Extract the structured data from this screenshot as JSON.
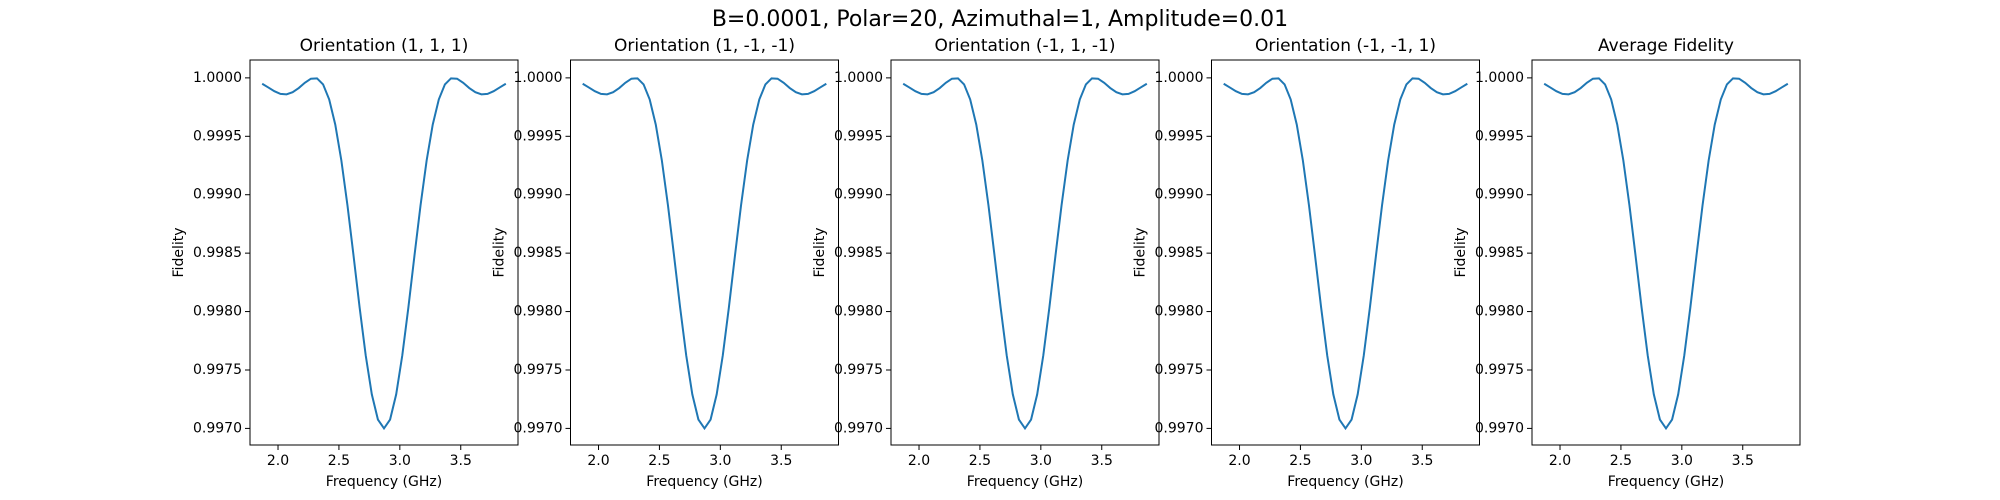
{
  "figure_title": "B=0.0001, Polar=20, Azimuthal=1, Amplitude=0.01",
  "chart_data": [
    {
      "type": "line",
      "title": "Orientation (1, 1, 1)",
      "xlabel": "Frequency (GHz)",
      "ylabel": "Fidelity",
      "color": "#1f77b4",
      "x": [
        1.87,
        1.92,
        1.97,
        2.02,
        2.07,
        2.12,
        2.17,
        2.22,
        2.27,
        2.32,
        2.37,
        2.42,
        2.47,
        2.52,
        2.57,
        2.62,
        2.67,
        2.72,
        2.77,
        2.82,
        2.87,
        2.92,
        2.97,
        3.02,
        3.07,
        3.12,
        3.17,
        3.22,
        3.27,
        3.32,
        3.37,
        3.42,
        3.47,
        3.52,
        3.57,
        3.62,
        3.67,
        3.72,
        3.77,
        3.82,
        3.87
      ],
      "values": [
        0.99995,
        0.999918,
        0.999886,
        0.999863,
        0.999859,
        0.999877,
        0.999913,
        0.999958,
        0.999993,
        0.999996,
        0.999944,
        0.999816,
        0.9996,
        0.999293,
        0.99891,
        0.998478,
        0.998034,
        0.997624,
        0.997291,
        0.997076,
        0.997,
        0.997076,
        0.997291,
        0.997624,
        0.998034,
        0.998478,
        0.99891,
        0.999293,
        0.9996,
        0.999816,
        0.999944,
        0.999996,
        0.999993,
        0.999958,
        0.999913,
        0.999877,
        0.999859,
        0.999863,
        0.999886,
        0.999918,
        0.99995
      ],
      "xlim": [
        1.77,
        3.97
      ],
      "xticks": [
        {
          "value": 2,
          "label": "2.0"
        },
        2.5,
        {
          "value": 3,
          "label": "3.0"
        },
        3.5
      ],
      "ylim": [
        0.996858,
        1.000153
      ],
      "yticks": [
        {
          "value": 0.997,
          "label": "0.9970"
        },
        {
          "value": 0.9975,
          "label": "0.9975"
        },
        {
          "value": 0.998,
          "label": "0.9980"
        },
        {
          "value": 0.9985,
          "label": "0.9985"
        },
        {
          "value": 0.999,
          "label": "0.9990"
        },
        0.9995,
        {
          "value": 1,
          "label": "1.0000"
        }
      ]
    },
    {
      "type": "line",
      "title": "Orientation (1, -1, -1)",
      "xlabel": "Frequency (GHz)",
      "ylabel": "Fidelity",
      "color": "#1f77b4",
      "x": [
        1.87,
        1.92,
        1.97,
        2.02,
        2.07,
        2.12,
        2.17,
        2.22,
        2.27,
        2.32,
        2.37,
        2.42,
        2.47,
        2.52,
        2.57,
        2.62,
        2.67,
        2.72,
        2.77,
        2.82,
        2.87,
        2.92,
        2.97,
        3.02,
        3.07,
        3.12,
        3.17,
        3.22,
        3.27,
        3.32,
        3.37,
        3.42,
        3.47,
        3.52,
        3.57,
        3.62,
        3.67,
        3.72,
        3.77,
        3.82,
        3.87
      ],
      "values": [
        0.99995,
        0.999918,
        0.999886,
        0.999863,
        0.999859,
        0.999877,
        0.999913,
        0.999958,
        0.999993,
        0.999996,
        0.999944,
        0.999816,
        0.9996,
        0.999293,
        0.99891,
        0.998478,
        0.998034,
        0.997624,
        0.997291,
        0.997076,
        0.997,
        0.997076,
        0.997291,
        0.997624,
        0.998034,
        0.998478,
        0.99891,
        0.999293,
        0.9996,
        0.999816,
        0.999944,
        0.999996,
        0.999993,
        0.999958,
        0.999913,
        0.999877,
        0.999859,
        0.999863,
        0.999886,
        0.999918,
        0.99995
      ],
      "xlim": [
        1.77,
        3.97
      ],
      "xticks": [
        {
          "value": 2,
          "label": "2.0"
        },
        2.5,
        {
          "value": 3,
          "label": "3.0"
        },
        3.5
      ],
      "ylim": [
        0.996858,
        1.000153
      ],
      "yticks": [
        {
          "value": 0.997,
          "label": "0.9970"
        },
        {
          "value": 0.9975,
          "label": "0.9975"
        },
        {
          "value": 0.998,
          "label": "0.9980"
        },
        {
          "value": 0.9985,
          "label": "0.9985"
        },
        {
          "value": 0.999,
          "label": "0.9990"
        },
        0.9995,
        {
          "value": 1,
          "label": "1.0000"
        }
      ]
    },
    {
      "type": "line",
      "title": "Orientation (-1, 1, -1)",
      "xlabel": "Frequency (GHz)",
      "ylabel": "Fidelity",
      "color": "#1f77b4",
      "x": [
        1.87,
        1.92,
        1.97,
        2.02,
        2.07,
        2.12,
        2.17,
        2.22,
        2.27,
        2.32,
        2.37,
        2.42,
        2.47,
        2.52,
        2.57,
        2.62,
        2.67,
        2.72,
        2.77,
        2.82,
        2.87,
        2.92,
        2.97,
        3.02,
        3.07,
        3.12,
        3.17,
        3.22,
        3.27,
        3.32,
        3.37,
        3.42,
        3.47,
        3.52,
        3.57,
        3.62,
        3.67,
        3.72,
        3.77,
        3.82,
        3.87
      ],
      "values": [
        0.99995,
        0.999918,
        0.999886,
        0.999863,
        0.999859,
        0.999877,
        0.999913,
        0.999958,
        0.999993,
        0.999996,
        0.999944,
        0.999816,
        0.9996,
        0.999293,
        0.99891,
        0.998478,
        0.998034,
        0.997624,
        0.997291,
        0.997076,
        0.997,
        0.997076,
        0.997291,
        0.997624,
        0.998034,
        0.998478,
        0.99891,
        0.999293,
        0.9996,
        0.999816,
        0.999944,
        0.999996,
        0.999993,
        0.999958,
        0.999913,
        0.999877,
        0.999859,
        0.999863,
        0.999886,
        0.999918,
        0.99995
      ],
      "xlim": [
        1.77,
        3.97
      ],
      "xticks": [
        {
          "value": 2,
          "label": "2.0"
        },
        2.5,
        {
          "value": 3,
          "label": "3.0"
        },
        3.5
      ],
      "ylim": [
        0.996858,
        1.000153
      ],
      "yticks": [
        {
          "value": 0.997,
          "label": "0.9970"
        },
        {
          "value": 0.9975,
          "label": "0.9975"
        },
        {
          "value": 0.998,
          "label": "0.9980"
        },
        {
          "value": 0.9985,
          "label": "0.9985"
        },
        {
          "value": 0.999,
          "label": "0.9990"
        },
        0.9995,
        {
          "value": 1,
          "label": "1.0000"
        }
      ]
    },
    {
      "type": "line",
      "title": "Orientation (-1, -1, 1)",
      "xlabel": "Frequency (GHz)",
      "ylabel": "Fidelity",
      "color": "#1f77b4",
      "x": [
        1.87,
        1.92,
        1.97,
        2.02,
        2.07,
        2.12,
        2.17,
        2.22,
        2.27,
        2.32,
        2.37,
        2.42,
        2.47,
        2.52,
        2.57,
        2.62,
        2.67,
        2.72,
        2.77,
        2.82,
        2.87,
        2.92,
        2.97,
        3.02,
        3.07,
        3.12,
        3.17,
        3.22,
        3.27,
        3.32,
        3.37,
        3.42,
        3.47,
        3.52,
        3.57,
        3.62,
        3.67,
        3.72,
        3.77,
        3.82,
        3.87
      ],
      "values": [
        0.99995,
        0.999918,
        0.999886,
        0.999863,
        0.999859,
        0.999877,
        0.999913,
        0.999958,
        0.999993,
        0.999996,
        0.999944,
        0.999816,
        0.9996,
        0.999293,
        0.99891,
        0.998478,
        0.998034,
        0.997624,
        0.997291,
        0.997076,
        0.997,
        0.997076,
        0.997291,
        0.997624,
        0.998034,
        0.998478,
        0.99891,
        0.999293,
        0.9996,
        0.999816,
        0.999944,
        0.999996,
        0.999993,
        0.999958,
        0.999913,
        0.999877,
        0.999859,
        0.999863,
        0.999886,
        0.999918,
        0.99995
      ],
      "xlim": [
        1.77,
        3.97
      ],
      "xticks": [
        {
          "value": 2,
          "label": "2.0"
        },
        2.5,
        {
          "value": 3,
          "label": "3.0"
        },
        3.5
      ],
      "ylim": [
        0.996858,
        1.000153
      ],
      "yticks": [
        {
          "value": 0.997,
          "label": "0.9970"
        },
        {
          "value": 0.9975,
          "label": "0.9975"
        },
        {
          "value": 0.998,
          "label": "0.9980"
        },
        {
          "value": 0.9985,
          "label": "0.9985"
        },
        {
          "value": 0.999,
          "label": "0.9990"
        },
        0.9995,
        {
          "value": 1,
          "label": "1.0000"
        }
      ]
    },
    {
      "type": "line",
      "title": "Average Fidelity",
      "xlabel": "Frequency (GHz)",
      "ylabel": "Fidelity",
      "color": "#1f77b4",
      "x": [
        1.87,
        1.92,
        1.97,
        2.02,
        2.07,
        2.12,
        2.17,
        2.22,
        2.27,
        2.32,
        2.37,
        2.42,
        2.47,
        2.52,
        2.57,
        2.62,
        2.67,
        2.72,
        2.77,
        2.82,
        2.87,
        2.92,
        2.97,
        3.02,
        3.07,
        3.12,
        3.17,
        3.22,
        3.27,
        3.32,
        3.37,
        3.42,
        3.47,
        3.52,
        3.57,
        3.62,
        3.67,
        3.72,
        3.77,
        3.82,
        3.87
      ],
      "values": [
        0.99995,
        0.999918,
        0.999886,
        0.999863,
        0.999859,
        0.999877,
        0.999913,
        0.999958,
        0.999993,
        0.999996,
        0.999944,
        0.999816,
        0.9996,
        0.999293,
        0.99891,
        0.998478,
        0.998034,
        0.997624,
        0.997291,
        0.997076,
        0.997,
        0.997076,
        0.997291,
        0.997624,
        0.998034,
        0.998478,
        0.99891,
        0.999293,
        0.9996,
        0.999816,
        0.999944,
        0.999996,
        0.999993,
        0.999958,
        0.999913,
        0.999877,
        0.999859,
        0.999863,
        0.999886,
        0.999918,
        0.99995
      ],
      "xlim": [
        1.77,
        3.97
      ],
      "xticks": [
        {
          "value": 2,
          "label": "2.0"
        },
        2.5,
        {
          "value": 3,
          "label": "3.0"
        },
        3.5
      ],
      "ylim": [
        0.996858,
        1.000153
      ],
      "yticks": [
        {
          "value": 0.997,
          "label": "0.9970"
        },
        {
          "value": 0.9975,
          "label": "0.9975"
        },
        {
          "value": 0.998,
          "label": "0.9980"
        },
        {
          "value": 0.9985,
          "label": "0.9985"
        },
        {
          "value": 0.999,
          "label": "0.9990"
        },
        0.9995,
        {
          "value": 1,
          "label": "1.0000"
        }
      ]
    }
  ]
}
